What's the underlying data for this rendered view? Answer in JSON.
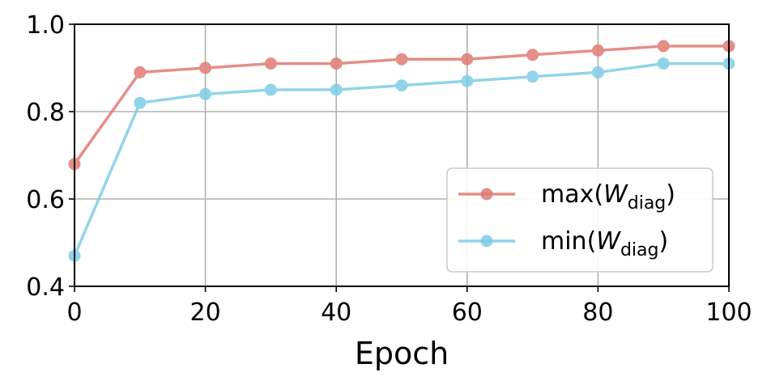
{
  "chart_data": {
    "type": "line",
    "xlabel": "Epoch",
    "ylabel": "",
    "title": "",
    "xlim": [
      0,
      100
    ],
    "ylim": [
      0.4,
      1.0
    ],
    "x_ticks": [
      0,
      20,
      40,
      60,
      80,
      100
    ],
    "x_tick_labels": [
      "0",
      "20",
      "40",
      "60",
      "80",
      "100"
    ],
    "y_ticks": [
      0.4,
      0.6,
      0.8,
      1.0
    ],
    "y_tick_labels": [
      "0.4",
      "0.6",
      "0.8",
      "1.0"
    ],
    "grid": true,
    "legend_position": "lower-right",
    "x": [
      0,
      10,
      20,
      30,
      40,
      50,
      60,
      70,
      80,
      90,
      100
    ],
    "series": [
      {
        "name": "max(W_diag)",
        "legend_main": "max(",
        "legend_var": "W",
        "legend_sub": "diag",
        "legend_close": ")",
        "color": "#e07b73",
        "values": [
          0.68,
          0.89,
          0.9,
          0.91,
          0.91,
          0.92,
          0.92,
          0.93,
          0.94,
          0.95,
          0.95
        ]
      },
      {
        "name": "min(W_diag)",
        "legend_main": "min(",
        "legend_var": "W",
        "legend_sub": "diag",
        "legend_close": ")",
        "color": "#7ecde6",
        "values": [
          0.47,
          0.82,
          0.84,
          0.85,
          0.85,
          0.86,
          0.87,
          0.88,
          0.89,
          0.91,
          0.91
        ]
      }
    ]
  }
}
